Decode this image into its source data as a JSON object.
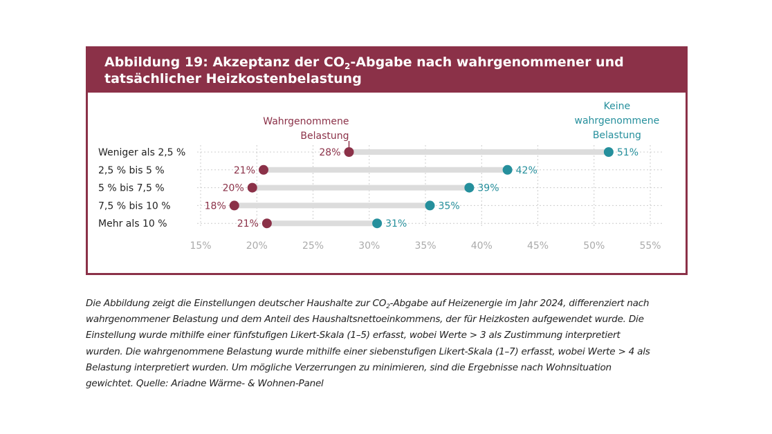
{
  "figure": {
    "title_part1": "Abbildung 19: Akzeptanz der CO",
    "title_sub": "2",
    "title_part2": "-Abgabe nach wahrgenommener und",
    "title_line2": "tatsächlicher Heizkostenbelastung"
  },
  "chart_data": {
    "type": "dot",
    "categories": [
      "Weniger als 2,5 %",
      "2,5 % bis 5 %",
      "5 % bis 7,5 %",
      "7,5 % bis 10 %",
      "Mehr als 10 %"
    ],
    "series": [
      {
        "name": "Wahrgenommene Belastung",
        "legend_lines": [
          "Wahrgenommene",
          "Belastung"
        ],
        "color": "#8b3148",
        "values": [
          28.2,
          20.6,
          19.6,
          18.0,
          20.9
        ],
        "labels": [
          "28%",
          "21%",
          "20%",
          "18%",
          "21%"
        ]
      },
      {
        "name": "Keine wahrgenommene Belastung",
        "legend_lines": [
          "Keine",
          "wahrgenommene",
          "Belastung"
        ],
        "color": "#258f9c",
        "values": [
          51.3,
          42.3,
          38.9,
          35.4,
          30.7
        ],
        "labels": [
          "51%",
          "42%",
          "39%",
          "35%",
          "31%"
        ]
      }
    ],
    "x_ticks": [
      15,
      20,
      25,
      30,
      35,
      40,
      45,
      50,
      55
    ],
    "x_tick_labels": [
      "15%",
      "20%",
      "25%",
      "30%",
      "35%",
      "40%",
      "45%",
      "50%",
      "55%"
    ],
    "xlim": [
      15,
      55
    ],
    "grid": true,
    "colors": {
      "frame": "#8b3148",
      "bar": "#dcdcdc",
      "grid": "#cccccc",
      "tick": "#aaaaaa"
    }
  },
  "caption": {
    "line1_a": "Die Abbildung zeigt die Einstellungen deutscher Haushalte zur CO",
    "line1_sub": "2",
    "line1_b": "-Abgabe auf Heizenergie im Jahr 2024, differenziert nach",
    "line2": "wahrgenommener Belastung und dem Anteil des Haushaltsnettoeinkommens, der für Heizkosten aufgewendet wurde. Die",
    "line3": "Einstellung wurde mithilfe einer fünfstufigen Likert-Skala (1–5) erfasst, wobei Werte > 3 als Zustimmung interpretiert",
    "line4": "wurden. Die wahrgenommene Belastung wurde mithilfe einer siebenstufigen Likert-Skala (1–7) erfasst, wobei Werte > 4 als",
    "line5": "Belastung interpretiert wurden. Um mögliche Verzerrungen zu minimieren, sind die Ergebnisse nach Wohnsituation",
    "line6": "gewichtet. Quelle: Ariadne Wärme- & Wohnen-Panel"
  }
}
